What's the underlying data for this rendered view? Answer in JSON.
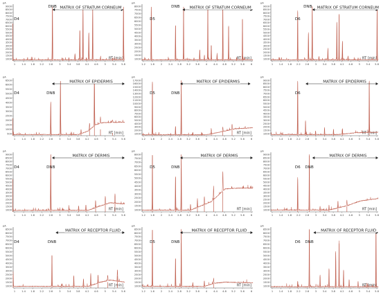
{
  "figure": {
    "y_unit_label": "pA",
    "x_axis_label": "RT [min]",
    "colors": {
      "trace": "#c06050",
      "axis": "#555555",
      "arrow": "#222222",
      "text": "#222222"
    }
  },
  "chart_data": [
    {
      "type": "line",
      "row": 0,
      "col": 0,
      "peak_labels": [
        {
          "text": "D4",
          "x": 0.97
        },
        {
          "text": "DNB",
          "x": 2.62
        }
      ],
      "matrix_label": "MATRIX OF STRATUM CORNEUM",
      "matrix_range": [
        2.62,
        5.55
      ],
      "xlim": [
        1.0,
        5.6
      ],
      "x_ticks": [
        "1",
        "1.4",
        "1.8",
        "2.2",
        "2.6",
        "3",
        "3.4",
        "3.8",
        "4.2",
        "4.6",
        "5",
        "5.4",
        "5.8"
      ],
      "ylim": [
        0,
        9500
      ],
      "y_ticks": [
        "1000",
        "1500",
        "2000",
        "2500",
        "3000",
        "3500",
        "4000",
        "4500",
        "5000",
        "5500",
        "6000",
        "6500",
        "7000",
        "7500",
        "8000",
        "8500",
        "9000"
      ],
      "baseline": 200,
      "peaks": [
        [
          0.98,
          6500
        ],
        [
          1.45,
          150
        ],
        [
          2.62,
          9400
        ],
        [
          3.05,
          250
        ],
        [
          3.3,
          400
        ],
        [
          3.55,
          1100
        ],
        [
          3.75,
          5300
        ],
        [
          3.88,
          9000
        ],
        [
          4.02,
          400
        ],
        [
          4.12,
          4800
        ],
        [
          4.28,
          9000
        ],
        [
          4.6,
          400
        ],
        [
          5.1,
          300
        ],
        [
          5.55,
          9400
        ]
      ]
    },
    {
      "type": "line",
      "row": 0,
      "col": 1,
      "peak_labels": [
        {
          "text": "D5",
          "x": 1.65
        },
        {
          "text": "DNB",
          "x": 2.65
        }
      ],
      "matrix_label": "MATRIX OF STRATUM CORNEUM",
      "matrix_range": [
        2.95,
        6.0
      ],
      "xlim": [
        1.2,
        6.0
      ],
      "x_ticks": [
        "1.2",
        "1.6",
        "2",
        "2.4",
        "2.8",
        "3.2",
        "3.6",
        "4",
        "4.4",
        "4.8",
        "5.2",
        "5.6",
        "6"
      ],
      "ylim": [
        0,
        8500
      ],
      "y_ticks": [
        "1000",
        "1500",
        "2000",
        "2500",
        "3000",
        "3500",
        "4000",
        "4500",
        "5000",
        "5500",
        "6000",
        "6500",
        "7000",
        "7500",
        "8000"
      ],
      "baseline": 180,
      "peaks": [
        [
          1.6,
          8400
        ],
        [
          2.65,
          5500
        ],
        [
          3.0,
          8400
        ],
        [
          3.45,
          300
        ],
        [
          3.7,
          1600
        ],
        [
          3.9,
          500
        ],
        [
          4.05,
          8400
        ],
        [
          4.2,
          2400
        ],
        [
          4.45,
          900
        ],
        [
          4.7,
          8400
        ],
        [
          4.95,
          5300
        ],
        [
          5.3,
          400
        ],
        [
          5.55,
          6500
        ]
      ]
    },
    {
      "type": "line",
      "row": 0,
      "col": 2,
      "peak_labels": [
        {
          "text": "D6",
          "x": 2.2
        },
        {
          "text": "DNB",
          "x": 2.65
        }
      ],
      "matrix_label": "MATRIX OF STRATUM CORNEUM",
      "matrix_range": [
        2.85,
        5.8
      ],
      "xlim": [
        1.0,
        5.8
      ],
      "x_ticks": [
        "1",
        "1.4",
        "1.8",
        "2.2",
        "2.6",
        "3",
        "3.4",
        "3.8",
        "4.2",
        "4.6",
        "5",
        "5.4",
        "5.8"
      ],
      "ylim": [
        0,
        9500
      ],
      "y_ticks": [
        "1000",
        "1500",
        "2000",
        "2500",
        "3000",
        "3500",
        "4000",
        "4500",
        "5000",
        "5500",
        "6000",
        "6500",
        "7000",
        "7500",
        "8000",
        "8500",
        "9000"
      ],
      "baseline": 200,
      "peaks": [
        [
          2.2,
          8500
        ],
        [
          2.68,
          4700
        ],
        [
          2.85,
          9400
        ],
        [
          3.15,
          600
        ],
        [
          3.55,
          2000
        ],
        [
          3.95,
          6600
        ],
        [
          4.05,
          8000
        ],
        [
          4.2,
          3300
        ],
        [
          4.45,
          700
        ],
        [
          4.9,
          300
        ],
        [
          5.75,
          9400
        ]
      ]
    },
    {
      "type": "line",
      "row": 1,
      "col": 0,
      "peak_labels": [
        {
          "text": "D4",
          "x": 0.97
        },
        {
          "text": "DNB",
          "x": 2.55
        }
      ],
      "matrix_label": "MATRIX OF EPIDERMIS",
      "matrix_range": [
        2.6,
        5.6
      ],
      "xlim": [
        1.0,
        5.6
      ],
      "x_ticks": [
        "1",
        "1.4",
        "1.8",
        "2.2",
        "2.6",
        "3",
        "3.4",
        "3.8",
        "4.2",
        "4.6",
        "5",
        "5.4",
        "5.6"
      ],
      "ylim": [
        0,
        7000
      ],
      "y_ticks": [
        "500",
        "1000",
        "1500",
        "2000",
        "2500",
        "3000",
        "3500",
        "4000",
        "4500",
        "5000",
        "5500",
        "6000",
        "6500"
      ],
      "baseline": 150,
      "rise": [
        [
          3.7,
          150
        ],
        [
          4.1,
          600
        ],
        [
          4.4,
          1400
        ],
        [
          4.7,
          1650
        ],
        [
          5.6,
          1700
        ]
      ],
      "peaks": [
        [
          0.98,
          2200
        ],
        [
          2.55,
          4100
        ],
        [
          2.95,
          6900
        ],
        [
          3.4,
          300
        ],
        [
          3.8,
          500
        ],
        [
          4.15,
          900
        ],
        [
          4.35,
          6900
        ],
        [
          4.6,
          800
        ],
        [
          5.1,
          350
        ]
      ]
    },
    {
      "type": "line",
      "row": 1,
      "col": 1,
      "peak_labels": [
        {
          "text": "D5",
          "x": 1.65
        },
        {
          "text": "DNB",
          "x": 2.65
        }
      ],
      "matrix_label": "MATRIX OF EPIDERMIS",
      "matrix_range": [
        2.85,
        5.9
      ],
      "xlim": [
        1.2,
        6.0
      ],
      "x_ticks": [
        "1.2",
        "1.6",
        "2",
        "2.4",
        "2.8",
        "3.2",
        "3.6",
        "4",
        "4.4",
        "4.8",
        "5.2",
        "5.6",
        "6"
      ],
      "ylim": [
        0,
        18000
      ],
      "y_ticks": [
        "1000",
        "2000",
        "3000",
        "4000",
        "5000",
        "6000",
        "7000",
        "8000",
        "9000",
        "10000",
        "11000",
        "12000",
        "13000",
        "14000",
        "15000",
        "16000",
        "17000"
      ],
      "baseline": 300,
      "rise": [
        [
          4.0,
          300
        ],
        [
          4.6,
          1200
        ],
        [
          5.2,
          2200
        ],
        [
          6.0,
          2600
        ]
      ],
      "peaks": [
        [
          1.65,
          17500
        ],
        [
          2.65,
          2800
        ],
        [
          2.9,
          17800
        ],
        [
          3.4,
          900
        ],
        [
          3.8,
          700
        ],
        [
          4.2,
          1200
        ],
        [
          4.7,
          1500
        ],
        [
          5.1,
          1800
        ]
      ]
    },
    {
      "type": "line",
      "row": 1,
      "col": 2,
      "peak_labels": [
        {
          "text": "D6",
          "x": 2.2
        }
      ],
      "matrix_label": "MATRIX OF EPIDERMIS",
      "matrix_range": [
        2.55,
        5.8
      ],
      "xlim": [
        1.0,
        5.8
      ],
      "x_ticks": [
        "1",
        "1.4",
        "1.8",
        "2.2",
        "2.6",
        "3",
        "3.4",
        "3.8",
        "4.2",
        "4.6",
        "5",
        "5.4",
        "5.8"
      ],
      "ylim": [
        0,
        9500
      ],
      "y_ticks": [
        "1000",
        "1500",
        "2000",
        "2500",
        "3000",
        "3500",
        "4000",
        "4500",
        "5000",
        "5500",
        "6000",
        "6500",
        "7000",
        "7500",
        "8000",
        "8500",
        "9000"
      ],
      "baseline": 200,
      "rise": [
        [
          4.0,
          200
        ],
        [
          4.8,
          500
        ],
        [
          5.8,
          600
        ]
      ],
      "peaks": [
        [
          2.2,
          9200
        ],
        [
          2.55,
          2400
        ],
        [
          3.0,
          700
        ],
        [
          3.4,
          1200
        ],
        [
          3.8,
          900
        ],
        [
          4.2,
          1000
        ],
        [
          5.4,
          9200
        ]
      ]
    },
    {
      "type": "line",
      "row": 2,
      "col": 0,
      "peak_labels": [
        {
          "text": "D4",
          "x": 0.97
        },
        {
          "text": "DNB",
          "x": 2.55
        }
      ],
      "matrix_label": "MATRIX OF DERMIS",
      "matrix_range": [
        2.6,
        5.6
      ],
      "xlim": [
        1.0,
        5.6
      ],
      "x_ticks": [
        "1",
        "1.4",
        "1.8",
        "2.2",
        "2.6",
        "3",
        "3.4",
        "3.8",
        "4.2",
        "4.6",
        "5",
        "5.4",
        "5.6"
      ],
      "ylim": [
        0,
        9500
      ],
      "y_ticks": [
        "1000",
        "1500",
        "2000",
        "2500",
        "3000",
        "3500",
        "4000",
        "4500",
        "5000",
        "5500",
        "6000",
        "6500",
        "7000",
        "7500",
        "8000",
        "8500",
        "9000"
      ],
      "baseline": 250,
      "rise": [
        [
          4.1,
          250
        ],
        [
          4.6,
          1000
        ],
        [
          5.0,
          1500
        ],
        [
          5.6,
          1300
        ]
      ],
      "peaks": [
        [
          0.98,
          5400
        ],
        [
          2.55,
          9400
        ],
        [
          3.3,
          500
        ],
        [
          3.7,
          700
        ],
        [
          4.0,
          900
        ],
        [
          4.4,
          1200
        ],
        [
          4.8,
          1300
        ],
        [
          5.2,
          1600
        ]
      ]
    },
    {
      "type": "line",
      "row": 2,
      "col": 1,
      "peak_labels": [
        {
          "text": "D5",
          "x": 1.65
        },
        {
          "text": "DNB",
          "x": 2.65
        }
      ],
      "matrix_label": "MATRIX OF DERMIS",
      "matrix_range": [
        2.85,
        6.0
      ],
      "xlim": [
        1.2,
        6.0
      ],
      "x_ticks": [
        "1.2",
        "1.6",
        "2",
        "2.4",
        "2.8",
        "3.2",
        "3.6",
        "4",
        "4.4",
        "4.8",
        "5.2",
        "5.6",
        "6"
      ],
      "ylim": [
        0,
        8500
      ],
      "y_ticks": [
        "1000",
        "1500",
        "2000",
        "2500",
        "3000",
        "3500",
        "4000",
        "4500",
        "5000",
        "5500",
        "6000",
        "6500",
        "7000",
        "7500",
        "8000"
      ],
      "baseline": 250,
      "rise": [
        [
          3.3,
          250
        ],
        [
          4.2,
          1500
        ],
        [
          4.8,
          3400
        ],
        [
          5.3,
          3500
        ],
        [
          6.0,
          3500
        ]
      ],
      "peaks": [
        [
          1.65,
          8400
        ],
        [
          2.65,
          5200
        ],
        [
          2.9,
          8400
        ],
        [
          3.3,
          900
        ],
        [
          3.6,
          1300
        ],
        [
          3.9,
          1200
        ],
        [
          4.3,
          2000
        ],
        [
          4.7,
          3000
        ]
      ]
    },
    {
      "type": "line",
      "row": 2,
      "col": 2,
      "peak_labels": [
        {
          "text": "D6",
          "x": 2.2
        },
        {
          "text": "DNB",
          "x": 2.72
        }
      ],
      "matrix_label": "MATRIX OF DERMIS",
      "matrix_range": [
        2.85,
        5.8
      ],
      "xlim": [
        1.0,
        5.8
      ],
      "x_ticks": [
        "1",
        "1.4",
        "1.8",
        "2.2",
        "2.6",
        "3",
        "3.4",
        "3.8",
        "4.2",
        "4.6",
        "5",
        "5.4",
        "5.8"
      ],
      "ylim": [
        0,
        9500
      ],
      "y_ticks": [
        "1000",
        "1500",
        "2000",
        "2500",
        "3000",
        "3500",
        "4000",
        "4500",
        "5000",
        "5500",
        "6000",
        "6500",
        "7000",
        "7500",
        "8000",
        "8500",
        "9000"
      ],
      "baseline": 300,
      "rise": [
        [
          3.6,
          300
        ],
        [
          4.4,
          1000
        ],
        [
          5.0,
          1800
        ],
        [
          5.8,
          2200
        ]
      ],
      "peaks": [
        [
          2.2,
          5400
        ],
        [
          2.72,
          9300
        ],
        [
          3.2,
          600
        ],
        [
          3.6,
          800
        ],
        [
          4.0,
          1200
        ],
        [
          4.4,
          900
        ]
      ]
    },
    {
      "type": "line",
      "row": 3,
      "col": 0,
      "peak_labels": [
        {
          "text": "D4",
          "x": 0.97
        },
        {
          "text": "DNB",
          "x": 2.6
        }
      ],
      "matrix_label": "MATRIX OF RECEPTOR FLUID",
      "matrix_range": [
        2.75,
        5.6
      ],
      "xlim": [
        1.0,
        5.6
      ],
      "x_ticks": [
        "1",
        "1.4",
        "1.8",
        "2.2",
        "2.6",
        "3",
        "3.4",
        "3.8",
        "4.2",
        "4.6",
        "5",
        "5.4",
        "5.6"
      ],
      "ylim": [
        0,
        9000
      ],
      "y_ticks": [
        "1000",
        "1500",
        "2000",
        "2500",
        "3000",
        "3500",
        "4000",
        "4500",
        "5000",
        "5500",
        "6000",
        "6500",
        "7000",
        "7500",
        "8000",
        "8500"
      ],
      "baseline": 250,
      "rise": [
        [
          4.1,
          250
        ],
        [
          4.6,
          900
        ],
        [
          5.0,
          1200
        ],
        [
          5.6,
          900
        ]
      ],
      "peaks": [
        [
          1.0,
          2000
        ],
        [
          2.6,
          5000
        ],
        [
          3.0,
          400
        ],
        [
          3.5,
          1700
        ],
        [
          3.9,
          1200
        ],
        [
          4.2,
          1900
        ],
        [
          4.5,
          1300
        ],
        [
          4.9,
          900
        ],
        [
          5.3,
          1800
        ]
      ]
    },
    {
      "type": "line",
      "row": 3,
      "col": 1,
      "peak_labels": [
        {
          "text": "D5",
          "x": 1.65
        },
        {
          "text": "DNB",
          "x": 2.65
        }
      ],
      "matrix_label": "MATRIX OF RECEPTOR FLUID",
      "matrix_range": [
        2.85,
        6.0
      ],
      "xlim": [
        1.2,
        6.0
      ],
      "x_ticks": [
        "1.2",
        "1.6",
        "2",
        "2.4",
        "2.8",
        "3.2",
        "3.6",
        "4",
        "4.4",
        "4.8",
        "5.2",
        "5.6",
        "6"
      ],
      "ylim": [
        0,
        9000
      ],
      "y_ticks": [
        "1000",
        "1500",
        "2000",
        "2500",
        "3000",
        "3500",
        "4000",
        "4500",
        "5000",
        "5500",
        "6000",
        "6500",
        "7000",
        "7500",
        "8000",
        "8500"
      ],
      "baseline": 250,
      "rise": [
        [
          3.9,
          250
        ],
        [
          4.3,
          700
        ],
        [
          4.8,
          900
        ],
        [
          6.0,
          800
        ]
      ],
      "peaks": [
        [
          1.65,
          8900
        ],
        [
          2.65,
          4500
        ],
        [
          2.9,
          8900
        ],
        [
          3.4,
          600
        ],
        [
          3.9,
          900
        ],
        [
          4.3,
          700
        ]
      ]
    },
    {
      "type": "line",
      "row": 3,
      "col": 2,
      "peak_labels": [
        {
          "text": "D6",
          "x": 2.2
        },
        {
          "text": "DNB",
          "x": 2.72
        }
      ],
      "matrix_label": "MATRIX OF RECEPTOR FLUID",
      "matrix_range": [
        2.9,
        5.8
      ],
      "xlim": [
        1.0,
        5.8
      ],
      "x_ticks": [
        "1",
        "1.4",
        "1.8",
        "2.2",
        "2.6",
        "3",
        "3.4",
        "3.8",
        "4.2",
        "4.6",
        "5",
        "5.4",
        "5.8"
      ],
      "ylim": [
        0,
        9000
      ],
      "y_ticks": [
        "1000",
        "1500",
        "2000",
        "2500",
        "3000",
        "3500",
        "4000",
        "4500",
        "5000",
        "5500",
        "6000",
        "6500",
        "7000",
        "7500",
        "8000",
        "8500"
      ],
      "baseline": 200,
      "peaks": [
        [
          2.2,
          900
        ],
        [
          2.72,
          8900
        ],
        [
          3.2,
          1800
        ],
        [
          3.6,
          2800
        ],
        [
          3.9,
          5400
        ],
        [
          4.05,
          6800
        ],
        [
          4.25,
          2600
        ],
        [
          4.5,
          1100
        ],
        [
          4.9,
          800
        ],
        [
          5.3,
          600
        ],
        [
          5.7,
          8900
        ]
      ]
    }
  ]
}
